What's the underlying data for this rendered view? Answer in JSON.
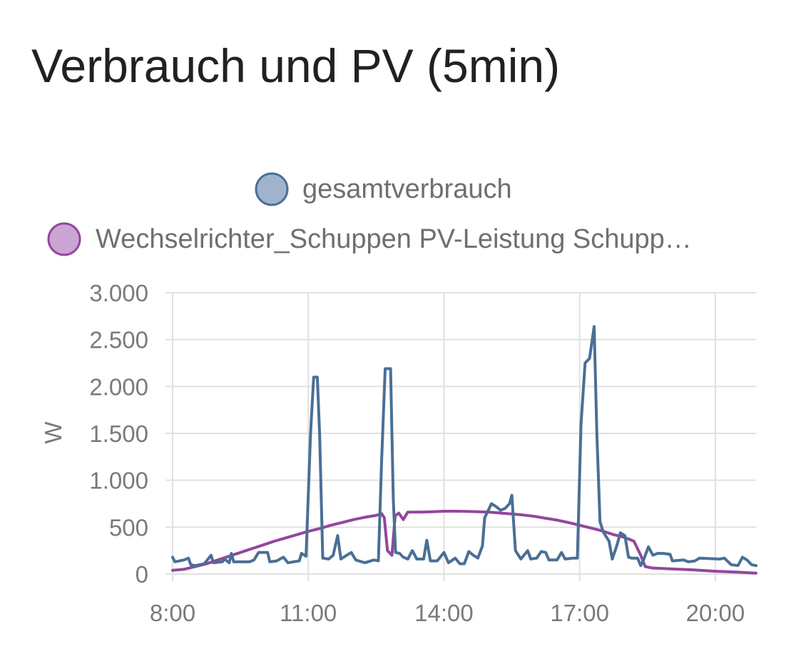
{
  "card": {
    "title": "Verbrauch und PV (5min)"
  },
  "chart_data": {
    "type": "line",
    "title": "Verbrauch und PV (5min)",
    "xlabel": "",
    "ylabel": "W",
    "xlim": [
      8.0,
      20.9
    ],
    "ylim": [
      0,
      3000
    ],
    "x_ticks": [
      8,
      11,
      14,
      17,
      20
    ],
    "x_tick_labels": [
      "8:00",
      "11:00",
      "14:00",
      "17:00",
      "20:00"
    ],
    "y_ticks": [
      0,
      500,
      1000,
      1500,
      2000,
      2500,
      3000
    ],
    "y_tick_labels": [
      "0",
      "500",
      "1.000",
      "1.500",
      "2.000",
      "2.500",
      "3.000"
    ],
    "grid": true,
    "legend_position": "top-center",
    "series": [
      {
        "name": "gesamtverbrauch",
        "color": "#4a6f96",
        "fill": "#9fb4cc",
        "points": [
          [
            8.0,
            180
          ],
          [
            8.05,
            130
          ],
          [
            8.25,
            150
          ],
          [
            8.35,
            170
          ],
          [
            8.4,
            100
          ],
          [
            8.5,
            90
          ],
          [
            8.7,
            110
          ],
          [
            8.85,
            200
          ],
          [
            8.9,
            120
          ],
          [
            9.1,
            130
          ],
          [
            9.15,
            160
          ],
          [
            9.25,
            120
          ],
          [
            9.3,
            220
          ],
          [
            9.35,
            130
          ],
          [
            9.7,
            130
          ],
          [
            9.8,
            150
          ],
          [
            9.9,
            230
          ],
          [
            10.1,
            230
          ],
          [
            10.15,
            130
          ],
          [
            10.3,
            140
          ],
          [
            10.45,
            180
          ],
          [
            10.55,
            120
          ],
          [
            10.8,
            140
          ],
          [
            10.85,
            220
          ],
          [
            10.95,
            190
          ],
          [
            11.05,
            1500
          ],
          [
            11.12,
            2100
          ],
          [
            11.2,
            2100
          ],
          [
            11.25,
            1500
          ],
          [
            11.32,
            170
          ],
          [
            11.45,
            160
          ],
          [
            11.55,
            200
          ],
          [
            11.65,
            410
          ],
          [
            11.72,
            160
          ],
          [
            11.85,
            200
          ],
          [
            11.95,
            230
          ],
          [
            12.05,
            150
          ],
          [
            12.25,
            120
          ],
          [
            12.45,
            150
          ],
          [
            12.55,
            140
          ],
          [
            12.62,
            1200
          ],
          [
            12.7,
            2190
          ],
          [
            12.82,
            2190
          ],
          [
            12.88,
            800
          ],
          [
            12.93,
            230
          ],
          [
            13.02,
            220
          ],
          [
            13.1,
            180
          ],
          [
            13.2,
            160
          ],
          [
            13.3,
            250
          ],
          [
            13.4,
            160
          ],
          [
            13.55,
            160
          ],
          [
            13.62,
            360
          ],
          [
            13.7,
            140
          ],
          [
            13.85,
            140
          ],
          [
            14.0,
            230
          ],
          [
            14.1,
            120
          ],
          [
            14.25,
            170
          ],
          [
            14.35,
            110
          ],
          [
            14.45,
            110
          ],
          [
            14.55,
            240
          ],
          [
            14.65,
            200
          ],
          [
            14.75,
            170
          ],
          [
            14.85,
            300
          ],
          [
            14.9,
            600
          ],
          [
            15.05,
            750
          ],
          [
            15.15,
            720
          ],
          [
            15.25,
            680
          ],
          [
            15.35,
            700
          ],
          [
            15.45,
            750
          ],
          [
            15.5,
            840
          ],
          [
            15.58,
            250
          ],
          [
            15.7,
            160
          ],
          [
            15.85,
            250
          ],
          [
            15.92,
            160
          ],
          [
            16.05,
            170
          ],
          [
            16.15,
            240
          ],
          [
            16.25,
            230
          ],
          [
            16.32,
            150
          ],
          [
            16.5,
            150
          ],
          [
            16.6,
            230
          ],
          [
            16.68,
            160
          ],
          [
            16.85,
            170
          ],
          [
            16.95,
            170
          ],
          [
            17.03,
            1600
          ],
          [
            17.12,
            2250
          ],
          [
            17.22,
            2300
          ],
          [
            17.32,
            2640
          ],
          [
            17.38,
            1500
          ],
          [
            17.45,
            560
          ],
          [
            17.52,
            450
          ],
          [
            17.65,
            350
          ],
          [
            17.72,
            160
          ],
          [
            17.82,
            300
          ],
          [
            17.9,
            440
          ],
          [
            18.0,
            410
          ],
          [
            18.08,
            180
          ],
          [
            18.15,
            170
          ],
          [
            18.28,
            170
          ],
          [
            18.35,
            90
          ],
          [
            18.42,
            160
          ],
          [
            18.52,
            290
          ],
          [
            18.62,
            200
          ],
          [
            18.72,
            220
          ],
          [
            18.85,
            220
          ],
          [
            19.0,
            210
          ],
          [
            19.05,
            140
          ],
          [
            19.3,
            150
          ],
          [
            19.4,
            130
          ],
          [
            19.55,
            140
          ],
          [
            19.65,
            170
          ],
          [
            20.1,
            160
          ],
          [
            20.2,
            170
          ],
          [
            20.35,
            100
          ],
          [
            20.5,
            90
          ],
          [
            20.6,
            180
          ],
          [
            20.7,
            150
          ],
          [
            20.8,
            100
          ],
          [
            20.9,
            90
          ]
        ]
      },
      {
        "name": "Wechselrichter_Schuppen PV-Leistung Schupp…",
        "color": "#93479c",
        "fill": "#cca4d4",
        "points": [
          [
            8.0,
            40
          ],
          [
            8.25,
            50
          ],
          [
            8.5,
            80
          ],
          [
            8.75,
            110
          ],
          [
            9.0,
            150
          ],
          [
            9.25,
            190
          ],
          [
            9.5,
            230
          ],
          [
            9.75,
            270
          ],
          [
            10.0,
            310
          ],
          [
            10.25,
            350
          ],
          [
            10.5,
            385
          ],
          [
            10.75,
            420
          ],
          [
            11.0,
            455
          ],
          [
            11.25,
            485
          ],
          [
            11.5,
            520
          ],
          [
            11.75,
            550
          ],
          [
            12.0,
            580
          ],
          [
            12.25,
            605
          ],
          [
            12.5,
            625
          ],
          [
            12.62,
            645
          ],
          [
            12.68,
            600
          ],
          [
            12.75,
            250
          ],
          [
            12.85,
            200
          ],
          [
            12.92,
            620
          ],
          [
            13.0,
            650
          ],
          [
            13.1,
            580
          ],
          [
            13.2,
            660
          ],
          [
            13.5,
            660
          ],
          [
            13.75,
            665
          ],
          [
            14.0,
            670
          ],
          [
            14.25,
            670
          ],
          [
            14.5,
            668
          ],
          [
            14.75,
            665
          ],
          [
            15.0,
            660
          ],
          [
            15.25,
            650
          ],
          [
            15.5,
            640
          ],
          [
            15.75,
            630
          ],
          [
            16.0,
            615
          ],
          [
            16.25,
            595
          ],
          [
            16.5,
            575
          ],
          [
            16.75,
            550
          ],
          [
            17.0,
            520
          ],
          [
            17.25,
            490
          ],
          [
            17.5,
            460
          ],
          [
            17.75,
            420
          ],
          [
            18.0,
            390
          ],
          [
            18.2,
            350
          ],
          [
            18.35,
            200
          ],
          [
            18.45,
            80
          ],
          [
            18.6,
            65
          ],
          [
            19.0,
            55
          ],
          [
            19.5,
            45
          ],
          [
            20.0,
            30
          ],
          [
            20.5,
            20
          ],
          [
            20.9,
            10
          ]
        ]
      }
    ]
  }
}
